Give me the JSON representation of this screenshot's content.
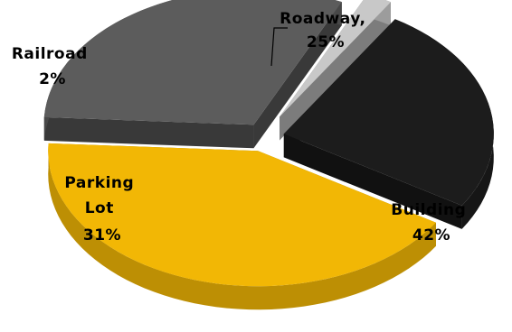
{
  "chart_data": {
    "type": "pie",
    "style": "3d-exploded",
    "legend": "none",
    "categories": [
      "Roadway",
      "Building",
      "Parking Lot",
      "Railroad"
    ],
    "values": [
      25,
      42,
      31,
      2
    ],
    "value_labels": [
      "25%",
      "42%",
      "31%",
      "2%"
    ],
    "label_names": [
      "Roadway,",
      "Building",
      "Parking",
      "Railroad"
    ],
    "label_names_line2": [
      "",
      "",
      "Lot",
      ""
    ],
    "colors": {
      "Roadway": "#1c1c1c",
      "Building": "#f2b705",
      "Parking Lot": "#5c5c5c",
      "Railroad": "#c8c8c8"
    },
    "label_colors": {
      "Roadway": "#000000",
      "Building": "#000000",
      "Parking Lot": "#000000",
      "Railroad": "#000000"
    }
  }
}
